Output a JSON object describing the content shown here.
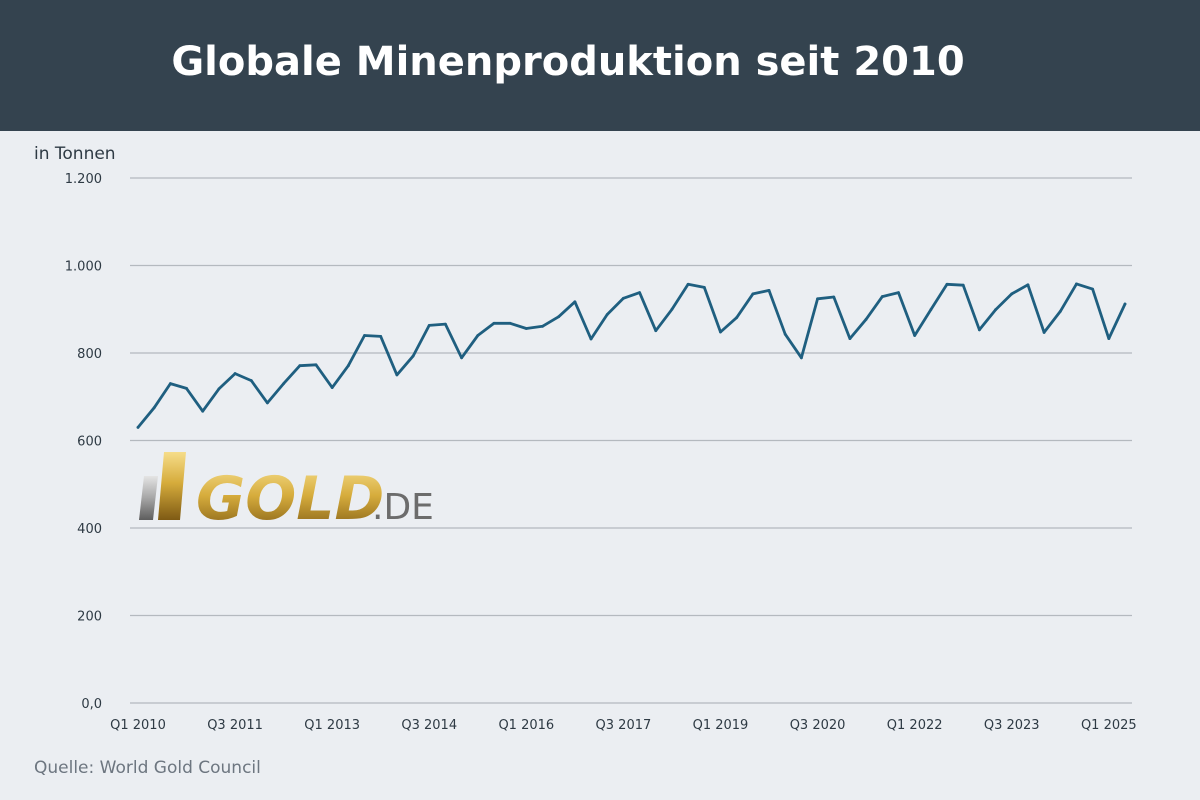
{
  "header": {
    "title": "Globale Minenproduktion seit 2010"
  },
  "chart_data": {
    "type": "line",
    "title": "Globale Minenproduktion seit 2010",
    "ylabel": "in Tonnen",
    "xlabel": "",
    "ylim": [
      0,
      1200
    ],
    "y_ticks": [
      0,
      200,
      400,
      600,
      800,
      1000,
      1200
    ],
    "y_tick_labels": [
      "0,0",
      "200",
      "400",
      "600",
      "800",
      "1.000",
      "1.200"
    ],
    "x_tick_labels": [
      "Q1 2010",
      "Q3 2011",
      "Q1 2013",
      "Q3 2014",
      "Q1 2016",
      "Q3 2017",
      "Q1 2019",
      "Q3 2020",
      "Q1 2022",
      "Q3 2023",
      "Q1 2025"
    ],
    "x_tick_every": 6,
    "grid": true,
    "line_color": "#1f5f80",
    "series": [
      {
        "values": [
          630,
          675,
          730,
          719,
          667,
          718,
          753,
          737,
          686,
          730,
          771,
          773,
          721,
          771,
          840,
          838,
          750,
          793,
          863,
          866,
          789,
          840,
          868,
          868,
          856,
          861,
          883,
          917,
          832,
          888,
          925,
          938,
          851,
          900,
          957,
          950,
          848,
          881,
          935,
          943,
          843,
          789,
          924,
          928,
          833,
          877,
          929,
          938,
          840,
          899,
          957,
          955,
          853,
          899,
          935,
          956,
          847,
          895,
          958,
          946,
          833,
          912
        ]
      }
    ]
  },
  "watermark": {
    "brand": "GOLD",
    "suffix": ".DE"
  },
  "footer": {
    "unit": "in Tonnen",
    "source": "Quelle: World Gold Council"
  }
}
